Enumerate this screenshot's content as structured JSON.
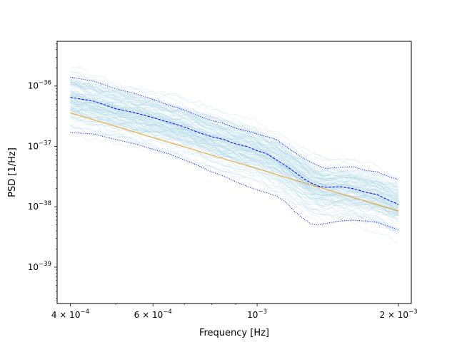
{
  "chart_data": {
    "type": "line",
    "title": "",
    "xlabel": "Frequency [Hz]",
    "ylabel": "PSD [1/Hz]",
    "x_scale": "log",
    "y_scale": "log",
    "xlim": [
      0.000375,
      0.00213
    ],
    "ylim": [
      2.5e-40,
      5.5e-36
    ],
    "x_ticks": [
      {
        "value": 0.0004,
        "base": "4 × 10",
        "exp": "−4"
      },
      {
        "value": 0.0006,
        "base": "6 × 10",
        "exp": "−4"
      },
      {
        "value": 0.001,
        "base": "10",
        "exp": "−3"
      },
      {
        "value": 0.002,
        "base": "2 × 10",
        "exp": "−3"
      }
    ],
    "y_ticks": [
      {
        "value": 1e-36,
        "base": "10",
        "exp": "−36"
      },
      {
        "value": 1e-37,
        "base": "10",
        "exp": "−37"
      },
      {
        "value": 1e-38,
        "base": "10",
        "exp": "−38"
      },
      {
        "value": 1e-39,
        "base": "10",
        "exp": "−39"
      }
    ],
    "grid": false,
    "legend": "none",
    "ensemble": {
      "color": "#add8e6",
      "count": 120,
      "median_shape": [
        [
          0.0004,
          6.5e-37
        ],
        [
          0.0005,
          4.2e-37
        ],
        [
          0.0006,
          3e-37
        ],
        [
          0.0007,
          2.1e-37
        ],
        [
          0.0008,
          1.45e-37
        ],
        [
          0.0009,
          1.1e-37
        ],
        [
          0.001,
          8.5e-38
        ],
        [
          0.0011,
          6e-38
        ],
        [
          0.0012,
          3.8e-38
        ],
        [
          0.0013,
          2.5e-38
        ],
        [
          0.0014,
          2.1e-38
        ],
        [
          0.0015,
          2.1e-38
        ],
        [
          0.0016,
          2e-38
        ],
        [
          0.0017,
          1.75e-38
        ],
        [
          0.0018,
          1.6e-38
        ],
        [
          0.0019,
          1.3e-38
        ],
        [
          0.002,
          1.1e-38
        ]
      ]
    },
    "series": [
      {
        "color": "#0000ff",
        "style": "dashed",
        "points": [
          [
            0.0004,
            6.5e-37
          ],
          [
            0.00045,
            5.6e-37
          ],
          [
            0.0005,
            4.2e-37
          ],
          [
            0.00055,
            3.6e-37
          ],
          [
            0.0006,
            3e-37
          ],
          [
            0.00065,
            2.5e-37
          ],
          [
            0.0007,
            2.1e-37
          ],
          [
            0.00075,
            1.7e-37
          ],
          [
            0.0008,
            1.45e-37
          ],
          [
            0.00085,
            1.3e-37
          ],
          [
            0.0009,
            1.1e-37
          ],
          [
            0.00095,
            1e-37
          ],
          [
            0.001,
            8.5e-38
          ],
          [
            0.00105,
            7.5e-38
          ],
          [
            0.0011,
            6e-38
          ],
          [
            0.00115,
            4.8e-38
          ],
          [
            0.0012,
            3.8e-38
          ],
          [
            0.00125,
            3e-38
          ],
          [
            0.0013,
            2.5e-38
          ],
          [
            0.00135,
            2.2e-38
          ],
          [
            0.0014,
            2.1e-38
          ],
          [
            0.0015,
            2.15e-38
          ],
          [
            0.0016,
            2e-38
          ],
          [
            0.0017,
            1.75e-38
          ],
          [
            0.0018,
            1.6e-38
          ],
          [
            0.0019,
            1.3e-38
          ],
          [
            0.002,
            1.1e-38
          ]
        ]
      },
      {
        "color": "#0000ff",
        "style": "dotted",
        "points": [
          [
            0.0004,
            1.4e-36
          ],
          [
            0.00045,
            1.2e-36
          ],
          [
            0.0005,
            9e-37
          ],
          [
            0.00055,
            7.5e-37
          ],
          [
            0.0006,
            6e-37
          ],
          [
            0.00065,
            4.8e-37
          ],
          [
            0.0007,
            4e-37
          ],
          [
            0.00075,
            3.2e-37
          ],
          [
            0.0008,
            2.7e-37
          ],
          [
            0.00085,
            2.4e-37
          ],
          [
            0.0009,
            2e-37
          ],
          [
            0.00095,
            1.8e-37
          ],
          [
            0.001,
            1.6e-37
          ],
          [
            0.00105,
            1.45e-37
          ],
          [
            0.0011,
            1.3e-37
          ],
          [
            0.00115,
            1e-37
          ],
          [
            0.0012,
            8e-38
          ],
          [
            0.00125,
            6.5e-38
          ],
          [
            0.0013,
            5.5e-38
          ],
          [
            0.00135,
            4.8e-38
          ],
          [
            0.0014,
            4.3e-38
          ],
          [
            0.0015,
            4.5e-38
          ],
          [
            0.0016,
            4.6e-38
          ],
          [
            0.0017,
            4e-38
          ],
          [
            0.0018,
            3.8e-38
          ],
          [
            0.0019,
            3.2e-38
          ],
          [
            0.002,
            2.8e-38
          ]
        ]
      },
      {
        "color": "#0000ff",
        "style": "dotted",
        "points": [
          [
            0.0004,
            1.7e-37
          ],
          [
            0.00045,
            1.6e-37
          ],
          [
            0.0005,
            1.3e-37
          ],
          [
            0.00055,
            1.1e-37
          ],
          [
            0.0006,
            9e-38
          ],
          [
            0.00065,
            7.5e-38
          ],
          [
            0.0007,
            6e-38
          ],
          [
            0.00075,
            4.8e-38
          ],
          [
            0.0008,
            3.8e-38
          ],
          [
            0.00085,
            3.2e-38
          ],
          [
            0.0009,
            2.6e-38
          ],
          [
            0.00095,
            2.2e-38
          ],
          [
            0.001,
            1.9e-38
          ],
          [
            0.00105,
            1.7e-38
          ],
          [
            0.0011,
            1.5e-38
          ],
          [
            0.00115,
            1.2e-38
          ],
          [
            0.0012,
            8.5e-39
          ],
          [
            0.00125,
            6.5e-39
          ],
          [
            0.0013,
            5.2e-39
          ],
          [
            0.00135,
            5e-39
          ],
          [
            0.0014,
            5.3e-39
          ],
          [
            0.0015,
            5.8e-39
          ],
          [
            0.0016,
            6e-39
          ],
          [
            0.0017,
            5.8e-39
          ],
          [
            0.0018,
            5.5e-39
          ],
          [
            0.0019,
            4.8e-39
          ],
          [
            0.002,
            4.1e-39
          ]
        ]
      },
      {
        "color": "#f0a020",
        "style": "solid",
        "points": [
          [
            0.0004,
            3.6e-37
          ],
          [
            0.002,
            8.5e-39
          ]
        ]
      }
    ]
  }
}
